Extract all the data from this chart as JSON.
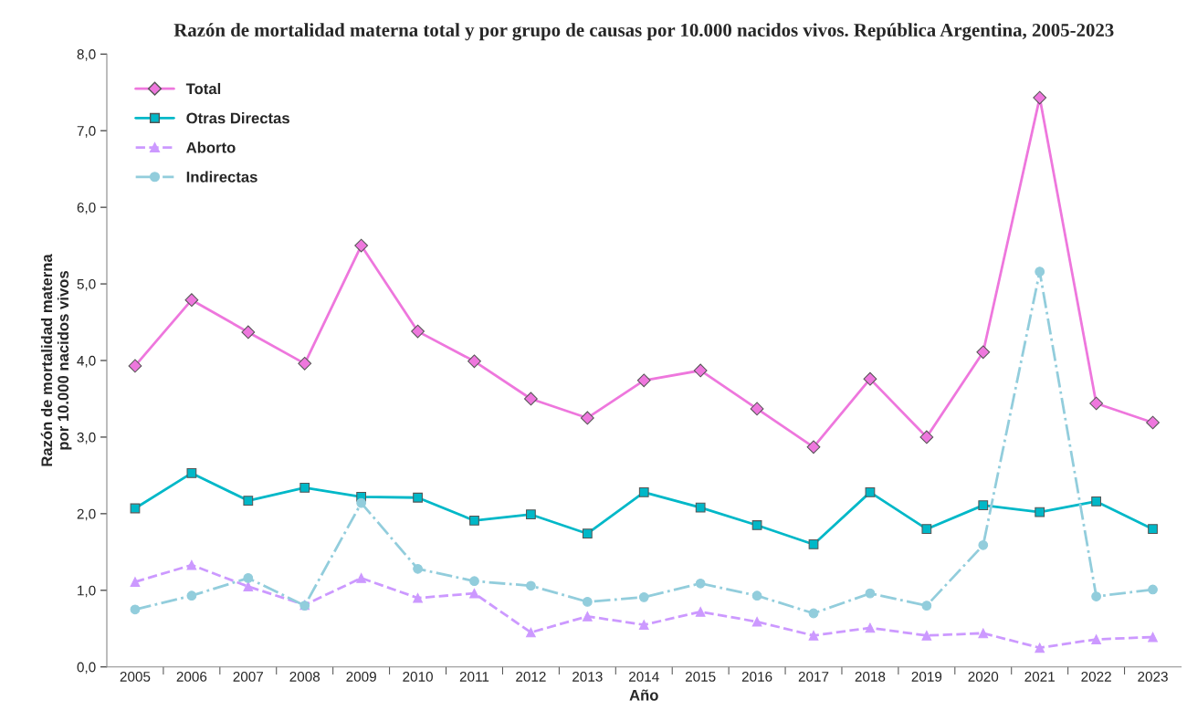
{
  "chart_data": {
    "type": "line",
    "title": "Razón de mortalidad materna total y por grupo de causas por 10.000 nacidos vivos. República Argentina, 2005-2023",
    "xlabel": "Año",
    "ylabel": "Razón de mortalidad materna\npor 10.000 nacidos vivos",
    "categories": [
      "2005",
      "2006",
      "2007",
      "2008",
      "2009",
      "2010",
      "2011",
      "2012",
      "2013",
      "2014",
      "2015",
      "2016",
      "2017",
      "2018",
      "2019",
      "2020",
      "2021",
      "2022",
      "2023"
    ],
    "series": [
      {
        "name": "Total",
        "color": "#ee77dd",
        "marker": "diamond",
        "line_style": "solid",
        "values": [
          3.93,
          4.79,
          4.37,
          3.96,
          5.5,
          4.38,
          3.99,
          3.5,
          3.25,
          3.74,
          3.87,
          3.37,
          2.87,
          3.76,
          3.0,
          4.11,
          7.43,
          3.44,
          3.19
        ]
      },
      {
        "name": "Otras Directas",
        "color": "#00b8c8",
        "marker": "square",
        "line_style": "solid",
        "values": [
          2.07,
          2.53,
          2.17,
          2.34,
          2.22,
          2.21,
          1.91,
          1.99,
          1.74,
          2.28,
          2.08,
          1.85,
          1.6,
          2.28,
          1.8,
          2.11,
          2.02,
          2.16,
          1.8
        ]
      },
      {
        "name": "Aborto",
        "color": "#cc99ff",
        "marker": "triangle",
        "line_style": "dashed",
        "values": [
          1.11,
          1.33,
          1.05,
          0.81,
          1.16,
          0.9,
          0.96,
          0.45,
          0.66,
          0.55,
          0.72,
          0.59,
          0.41,
          0.51,
          0.41,
          0.44,
          0.25,
          0.36,
          0.39
        ]
      },
      {
        "name": "Indirectas",
        "color": "#92cddc",
        "marker": "circle",
        "line_style": "dashdot",
        "values": [
          0.75,
          0.93,
          1.16,
          0.8,
          2.14,
          1.28,
          1.12,
          1.06,
          0.85,
          0.91,
          1.09,
          0.93,
          0.7,
          0.96,
          0.8,
          1.59,
          5.16,
          0.92,
          1.01
        ]
      }
    ],
    "ylim": [
      0,
      8
    ],
    "yticks": [
      {
        "value": 0,
        "label": "0,0"
      },
      {
        "value": 1,
        "label": "1,0"
      },
      {
        "value": 2,
        "label": "2,0"
      },
      {
        "value": 3,
        "label": "3,0"
      },
      {
        "value": 4,
        "label": "4,0"
      },
      {
        "value": 5,
        "label": "5,0"
      },
      {
        "value": 6,
        "label": "6,0"
      },
      {
        "value": 7,
        "label": "7,0"
      },
      {
        "value": 8,
        "label": "8,0"
      }
    ],
    "grid": false,
    "legend": "upper left"
  }
}
